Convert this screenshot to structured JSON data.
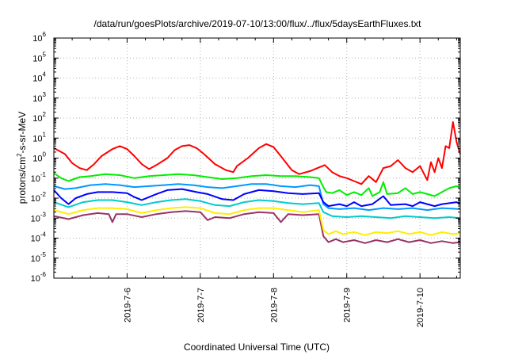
{
  "chart_data": {
    "type": "line",
    "title": "/data/run/goesPlots/archive/2019-07-10/13:00/flux/../flux/5daysEarthFluxes.txt",
    "xlabel": "Coordinated Universal Time (UTC)",
    "ylabel": "protons/cm2-s-sr-MeV",
    "ylabel_parts": {
      "pre": "protons/cm",
      "sup": "2",
      "post": "-s-sr-MeV"
    },
    "x_tick_labels": [
      "2019-7-6",
      "2019-7-7",
      "2019-7-8",
      "2019-7-9",
      "2019-7-10"
    ],
    "x_range_days": [
      0,
      5.55
    ],
    "x_tick_positions_days": [
      1,
      2,
      3,
      4,
      5
    ],
    "y_scale": "log",
    "y_tick_base": "10",
    "y_tick_exponents": [
      "6",
      "5",
      "4",
      "3",
      "2",
      "1",
      "0",
      "-1",
      "-2",
      "-3",
      "-4",
      "-5",
      "-6"
    ],
    "ylim_exp": [
      -6,
      6
    ],
    "grid": true,
    "series": [
      {
        "color": "#ff0000",
        "points": [
          [
            0,
            0.5
          ],
          [
            0.15,
            0.2
          ],
          [
            0.25,
            -0.25
          ],
          [
            0.35,
            -0.5
          ],
          [
            0.45,
            -0.6
          ],
          [
            0.55,
            -0.3
          ],
          [
            0.65,
            0.1
          ],
          [
            0.8,
            0.45
          ],
          [
            0.9,
            0.6
          ],
          [
            1.0,
            0.45
          ],
          [
            1.1,
            0.1
          ],
          [
            1.2,
            -0.3
          ],
          [
            1.3,
            -0.55
          ],
          [
            1.4,
            -0.35
          ],
          [
            1.55,
            0.0
          ],
          [
            1.65,
            0.4
          ],
          [
            1.75,
            0.6
          ],
          [
            1.85,
            0.65
          ],
          [
            1.95,
            0.5
          ],
          [
            2.05,
            0.2
          ],
          [
            2.2,
            -0.3
          ],
          [
            2.35,
            -0.6
          ],
          [
            2.45,
            -0.7
          ],
          [
            2.5,
            -0.4
          ],
          [
            2.65,
            0.0
          ],
          [
            2.8,
            0.5
          ],
          [
            2.9,
            0.7
          ],
          [
            3.0,
            0.55
          ],
          [
            3.1,
            0.1
          ],
          [
            3.25,
            -0.6
          ],
          [
            3.35,
            -0.8
          ],
          [
            3.5,
            -0.65
          ],
          [
            3.6,
            -0.5
          ],
          [
            3.7,
            -0.35
          ],
          [
            3.8,
            -0.7
          ],
          [
            3.9,
            -0.9
          ],
          [
            4.0,
            -1.0
          ],
          [
            4.1,
            -1.15
          ],
          [
            4.2,
            -1.3
          ],
          [
            4.3,
            -0.9
          ],
          [
            4.4,
            -1.2
          ],
          [
            4.5,
            -0.5
          ],
          [
            4.6,
            -0.4
          ],
          [
            4.7,
            -0.1
          ],
          [
            4.8,
            -0.5
          ],
          [
            4.9,
            -0.7
          ],
          [
            5.0,
            -0.4
          ],
          [
            5.1,
            -1.1
          ],
          [
            5.15,
            -0.2
          ],
          [
            5.2,
            -0.7
          ],
          [
            5.25,
            0.0
          ],
          [
            5.3,
            -0.5
          ],
          [
            5.35,
            0.6
          ],
          [
            5.4,
            0.5
          ],
          [
            5.45,
            1.8
          ],
          [
            5.5,
            0.8
          ],
          [
            5.55,
            0.2
          ]
        ]
      },
      {
        "color": "#00ee00",
        "points": [
          [
            0,
            -0.75
          ],
          [
            0.1,
            -1.0
          ],
          [
            0.2,
            -1.15
          ],
          [
            0.35,
            -0.95
          ],
          [
            0.5,
            -0.9
          ],
          [
            0.7,
            -0.8
          ],
          [
            0.9,
            -0.85
          ],
          [
            1.1,
            -1.0
          ],
          [
            1.3,
            -0.9
          ],
          [
            1.5,
            -0.85
          ],
          [
            1.7,
            -0.8
          ],
          [
            1.9,
            -0.85
          ],
          [
            2.1,
            -0.95
          ],
          [
            2.3,
            -1.05
          ],
          [
            2.5,
            -1.0
          ],
          [
            2.7,
            -0.9
          ],
          [
            2.9,
            -0.85
          ],
          [
            3.1,
            -0.9
          ],
          [
            3.3,
            -0.9
          ],
          [
            3.5,
            -0.95
          ],
          [
            3.62,
            -1.0
          ],
          [
            3.68,
            -1.45
          ],
          [
            3.72,
            -1.7
          ],
          [
            3.8,
            -1.75
          ],
          [
            3.9,
            -1.6
          ],
          [
            4.0,
            -1.85
          ],
          [
            4.1,
            -1.7
          ],
          [
            4.2,
            -1.85
          ],
          [
            4.3,
            -1.5
          ],
          [
            4.35,
            -1.9
          ],
          [
            4.45,
            -1.7
          ],
          [
            4.5,
            -1.2
          ],
          [
            4.55,
            -1.8
          ],
          [
            4.7,
            -1.75
          ],
          [
            4.8,
            -1.5
          ],
          [
            4.9,
            -1.8
          ],
          [
            5.0,
            -1.7
          ],
          [
            5.1,
            -1.8
          ],
          [
            5.2,
            -1.9
          ],
          [
            5.3,
            -1.7
          ],
          [
            5.4,
            -1.5
          ],
          [
            5.5,
            -1.4
          ],
          [
            5.55,
            -1.5
          ]
        ]
      },
      {
        "color": "#0000ff",
        "points": [
          [
            0,
            -1.6
          ],
          [
            0.1,
            -2.0
          ],
          [
            0.2,
            -2.3
          ],
          [
            0.3,
            -2.0
          ],
          [
            0.45,
            -1.8
          ],
          [
            0.6,
            -1.7
          ],
          [
            0.8,
            -1.7
          ],
          [
            1.0,
            -1.75
          ],
          [
            1.1,
            -1.95
          ],
          [
            1.2,
            -2.1
          ],
          [
            1.4,
            -1.8
          ],
          [
            1.55,
            -1.6
          ],
          [
            1.75,
            -1.55
          ],
          [
            1.95,
            -1.7
          ],
          [
            2.1,
            -1.8
          ],
          [
            2.3,
            -2.05
          ],
          [
            2.45,
            -2.1
          ],
          [
            2.6,
            -1.8
          ],
          [
            2.8,
            -1.6
          ],
          [
            3.0,
            -1.65
          ],
          [
            3.2,
            -1.75
          ],
          [
            3.4,
            -1.8
          ],
          [
            3.62,
            -1.75
          ],
          [
            3.68,
            -2.2
          ],
          [
            3.75,
            -2.4
          ],
          [
            3.9,
            -2.3
          ],
          [
            4.0,
            -2.4
          ],
          [
            4.1,
            -2.2
          ],
          [
            4.2,
            -2.4
          ],
          [
            4.35,
            -2.3
          ],
          [
            4.5,
            -1.9
          ],
          [
            4.6,
            -2.35
          ],
          [
            4.8,
            -2.3
          ],
          [
            4.9,
            -2.4
          ],
          [
            5.0,
            -2.2
          ],
          [
            5.2,
            -2.4
          ],
          [
            5.3,
            -2.3
          ],
          [
            5.5,
            -2.2
          ],
          [
            5.55,
            -2.3
          ]
        ]
      },
      {
        "color": "#0099ff",
        "points": [
          [
            0,
            -1.4
          ],
          [
            0.15,
            -1.55
          ],
          [
            0.3,
            -1.5
          ],
          [
            0.5,
            -1.35
          ],
          [
            0.7,
            -1.3
          ],
          [
            0.9,
            -1.35
          ],
          [
            1.1,
            -1.45
          ],
          [
            1.3,
            -1.4
          ],
          [
            1.5,
            -1.35
          ],
          [
            1.7,
            -1.3
          ],
          [
            1.9,
            -1.35
          ],
          [
            2.1,
            -1.45
          ],
          [
            2.3,
            -1.5
          ],
          [
            2.5,
            -1.4
          ],
          [
            2.7,
            -1.3
          ],
          [
            2.9,
            -1.3
          ],
          [
            3.1,
            -1.4
          ],
          [
            3.3,
            -1.45
          ],
          [
            3.5,
            -1.35
          ],
          [
            3.62,
            -1.4
          ],
          [
            3.68,
            -2.3
          ],
          [
            3.75,
            -2.5
          ],
          [
            3.9,
            -2.55
          ],
          [
            4.1,
            -2.5
          ],
          [
            4.3,
            -2.6
          ],
          [
            4.5,
            -2.5
          ],
          [
            4.7,
            -2.55
          ],
          [
            4.9,
            -2.5
          ],
          [
            5.1,
            -2.6
          ],
          [
            5.3,
            -2.5
          ],
          [
            5.55,
            -2.55
          ]
        ]
      },
      {
        "color": "#00cccc",
        "points": [
          [
            0,
            -2.2
          ],
          [
            0.2,
            -2.45
          ],
          [
            0.4,
            -2.2
          ],
          [
            0.6,
            -2.1
          ],
          [
            0.8,
            -2.1
          ],
          [
            1.0,
            -2.2
          ],
          [
            1.2,
            -2.35
          ],
          [
            1.4,
            -2.2
          ],
          [
            1.6,
            -2.1
          ],
          [
            1.8,
            -2.05
          ],
          [
            2.0,
            -2.15
          ],
          [
            2.2,
            -2.35
          ],
          [
            2.4,
            -2.4
          ],
          [
            2.6,
            -2.2
          ],
          [
            2.8,
            -2.1
          ],
          [
            3.0,
            -2.15
          ],
          [
            3.2,
            -2.25
          ],
          [
            3.4,
            -2.3
          ],
          [
            3.62,
            -2.25
          ],
          [
            3.68,
            -2.7
          ],
          [
            3.8,
            -2.9
          ],
          [
            4.0,
            -2.95
          ],
          [
            4.2,
            -2.9
          ],
          [
            4.4,
            -2.95
          ],
          [
            4.6,
            -3.0
          ],
          [
            4.8,
            -2.9
          ],
          [
            5.0,
            -2.95
          ],
          [
            5.2,
            -3.0
          ],
          [
            5.4,
            -2.95
          ],
          [
            5.55,
            -3.0
          ]
        ]
      },
      {
        "color": "#ffee00",
        "points": [
          [
            0,
            -2.6
          ],
          [
            0.2,
            -2.8
          ],
          [
            0.4,
            -2.6
          ],
          [
            0.6,
            -2.5
          ],
          [
            0.8,
            -2.5
          ],
          [
            1.0,
            -2.55
          ],
          [
            1.2,
            -2.75
          ],
          [
            1.4,
            -2.6
          ],
          [
            1.6,
            -2.5
          ],
          [
            1.8,
            -2.45
          ],
          [
            2.0,
            -2.5
          ],
          [
            2.2,
            -2.75
          ],
          [
            2.4,
            -2.8
          ],
          [
            2.6,
            -2.6
          ],
          [
            2.8,
            -2.5
          ],
          [
            3.0,
            -2.5
          ],
          [
            3.2,
            -2.6
          ],
          [
            3.4,
            -2.7
          ],
          [
            3.62,
            -2.6
          ],
          [
            3.68,
            -3.6
          ],
          [
            3.75,
            -3.8
          ],
          [
            3.85,
            -3.65
          ],
          [
            3.95,
            -3.8
          ],
          [
            4.1,
            -3.7
          ],
          [
            4.25,
            -3.85
          ],
          [
            4.4,
            -3.7
          ],
          [
            4.55,
            -3.75
          ],
          [
            4.7,
            -3.65
          ],
          [
            4.85,
            -3.8
          ],
          [
            5.0,
            -3.7
          ],
          [
            5.15,
            -3.85
          ],
          [
            5.3,
            -3.7
          ],
          [
            5.45,
            -3.8
          ],
          [
            5.55,
            -3.75
          ]
        ]
      },
      {
        "color": "#993366",
        "points": [
          [
            0,
            -2.9
          ],
          [
            0.2,
            -3.05
          ],
          [
            0.4,
            -2.85
          ],
          [
            0.6,
            -2.75
          ],
          [
            0.75,
            -2.8
          ],
          [
            0.8,
            -3.2
          ],
          [
            0.85,
            -2.8
          ],
          [
            1.0,
            -2.8
          ],
          [
            1.2,
            -2.95
          ],
          [
            1.4,
            -2.8
          ],
          [
            1.6,
            -2.7
          ],
          [
            1.8,
            -2.65
          ],
          [
            2.0,
            -2.7
          ],
          [
            2.1,
            -3.1
          ],
          [
            2.2,
            -2.95
          ],
          [
            2.4,
            -3.0
          ],
          [
            2.6,
            -2.8
          ],
          [
            2.8,
            -2.7
          ],
          [
            3.0,
            -2.75
          ],
          [
            3.1,
            -3.2
          ],
          [
            3.2,
            -2.8
          ],
          [
            3.4,
            -2.85
          ],
          [
            3.62,
            -2.8
          ],
          [
            3.68,
            -3.9
          ],
          [
            3.75,
            -4.2
          ],
          [
            3.85,
            -4.05
          ],
          [
            3.95,
            -4.2
          ],
          [
            4.1,
            -4.1
          ],
          [
            4.25,
            -4.25
          ],
          [
            4.4,
            -4.1
          ],
          [
            4.55,
            -4.2
          ],
          [
            4.7,
            -4.05
          ],
          [
            4.85,
            -4.2
          ],
          [
            5.0,
            -4.1
          ],
          [
            5.15,
            -4.25
          ],
          [
            5.3,
            -4.15
          ],
          [
            5.45,
            -4.25
          ],
          [
            5.55,
            -4.2
          ]
        ]
      }
    ]
  }
}
